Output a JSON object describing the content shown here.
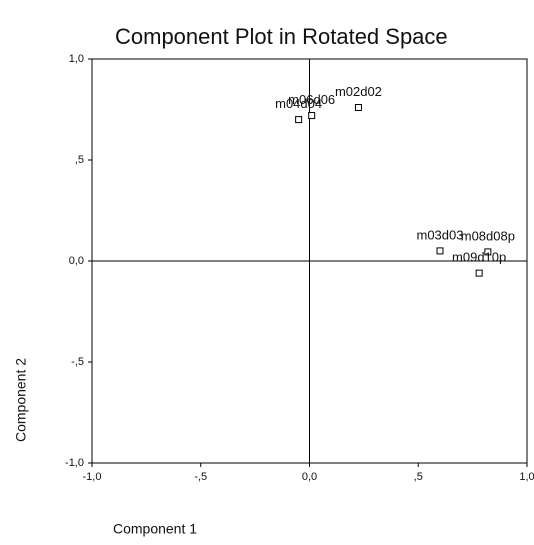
{
  "chart_data": {
    "type": "scatter",
    "title": "Component Plot in Rotated Space",
    "x_label": "Component 1",
    "y_label": "Component 2",
    "xlim": [
      -1.0,
      1.0
    ],
    "ylim": [
      -1.0,
      1.0
    ],
    "xticks": [
      {
        "value": -1.0,
        "label": "-1,0"
      },
      {
        "value": -0.5,
        "label": "-,5"
      },
      {
        "value": 0.0,
        "label": "0,0"
      },
      {
        "value": 0.5,
        "label": ",5"
      },
      {
        "value": 1.0,
        "label": "1,0"
      }
    ],
    "yticks": [
      {
        "value": -1.0,
        "label": "-1,0"
      },
      {
        "value": -0.5,
        "label": "-,5"
      },
      {
        "value": 0.0,
        "label": "0,0"
      },
      {
        "value": 0.5,
        "label": ",5"
      },
      {
        "value": 1.0,
        "label": "1,0"
      }
    ],
    "color": "#000000",
    "series": [
      {
        "labels": [
          "m04d04",
          "m06d06",
          "m02d02",
          "m03d03",
          "m08d08p",
          "m09d10p"
        ],
        "x": [
          -0.05,
          0.01,
          0.225,
          0.6,
          0.82,
          0.78
        ],
        "values": [
          0.7,
          0.72,
          0.76,
          0.05,
          0.045,
          -0.06
        ]
      }
    ]
  }
}
